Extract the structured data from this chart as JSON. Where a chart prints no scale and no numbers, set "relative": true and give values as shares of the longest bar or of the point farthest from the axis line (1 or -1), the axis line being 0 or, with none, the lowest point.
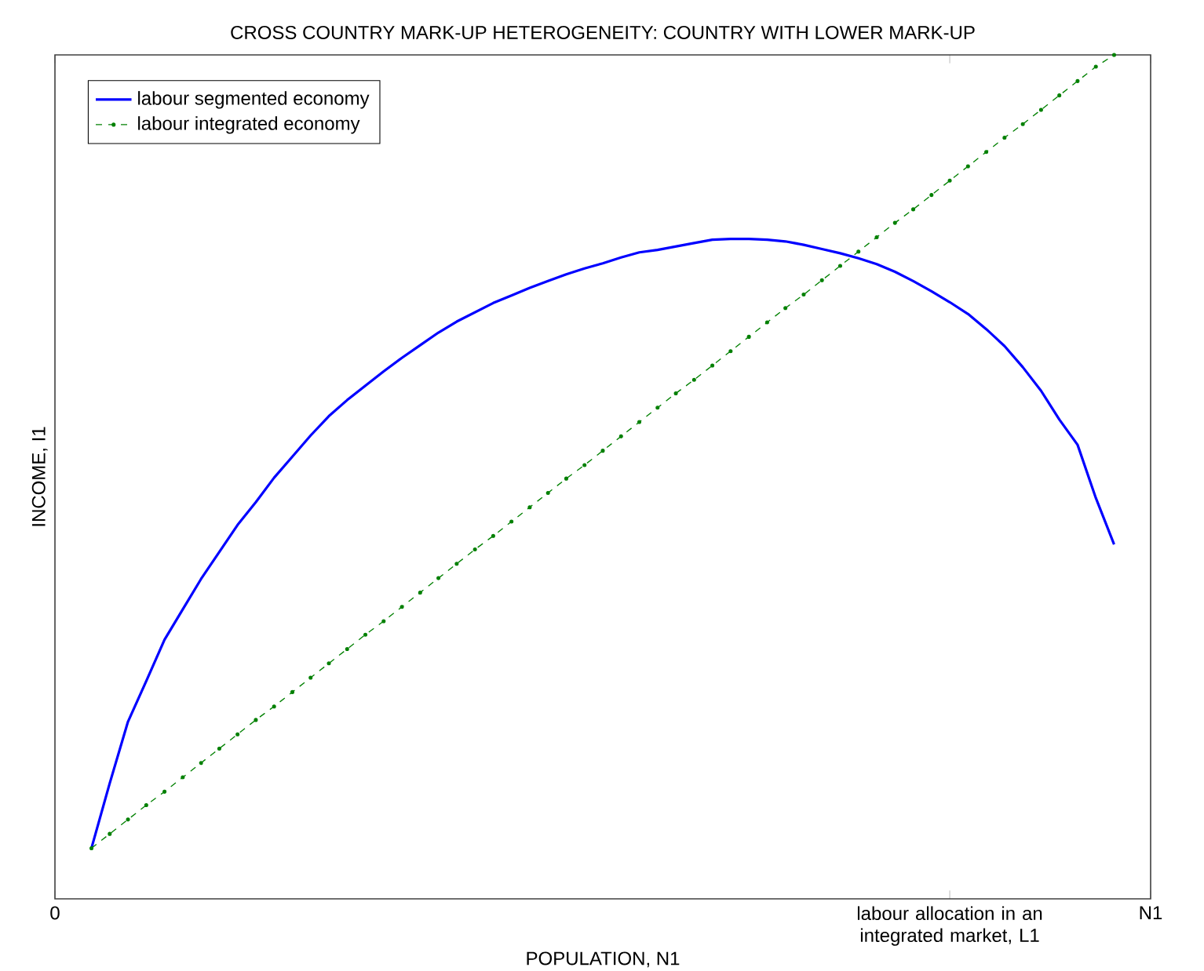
{
  "chart_data": {
    "type": "line",
    "title": "CROSS COUNTRY MARK-UP HETEROGENEITY: COUNTRY WITH LOWER MARK-UP",
    "xlabel": "POPULATION, N1",
    "ylabel": "INCOME, I1",
    "relative": true,
    "categories": [
      "0",
      null,
      null,
      null,
      null,
      null,
      null,
      null,
      null,
      null,
      null,
      null,
      null,
      null,
      null,
      null,
      null,
      null,
      null,
      null,
      null,
      null,
      null,
      null,
      null,
      null,
      null,
      null,
      null,
      null,
      null,
      null,
      null,
      null,
      null,
      null,
      null,
      null,
      null,
      null,
      null,
      null,
      null,
      null,
      null,
      null,
      null,
      null,
      null,
      "labour allocation in an integrated market, L1",
      null,
      null,
      null,
      null,
      null,
      null,
      null,
      null,
      null,
      null,
      "N1"
    ],
    "legend": "top left",
    "series": [
      {
        "name": "labour segmented economy",
        "color": "#0000ff",
        "line_style": "solid",
        "marker": "none",
        "values": [
          null,
          null,
          0.06,
          0.137,
          0.21,
          0.258,
          0.307,
          0.343,
          0.379,
          0.411,
          0.443,
          0.47,
          0.499,
          0.524,
          0.549,
          0.572,
          0.591,
          0.608,
          0.625,
          0.641,
          0.656,
          0.671,
          0.684,
          0.695,
          0.706,
          0.715,
          0.724,
          0.732,
          0.74,
          0.747,
          0.753,
          0.76,
          0.766,
          0.769,
          0.773,
          0.777,
          0.781,
          0.782,
          0.782,
          0.781,
          0.779,
          0.775,
          0.77,
          0.765,
          0.759,
          0.752,
          0.743,
          0.732,
          0.72,
          0.707,
          0.693,
          0.675,
          0.655,
          0.63,
          0.602,
          0.568,
          0.538,
          0.475,
          0.42,
          null,
          null
        ]
      },
      {
        "name": "labour integrated economy",
        "color": "#008000",
        "line_style": "dashed",
        "marker": "circle",
        "values": [
          null,
          null,
          0.06,
          0.077,
          0.094,
          0.111,
          0.127,
          0.144,
          0.161,
          0.178,
          0.195,
          0.212,
          0.228,
          0.245,
          0.262,
          0.279,
          0.296,
          0.313,
          0.329,
          0.346,
          0.363,
          0.38,
          0.397,
          0.414,
          0.43,
          0.447,
          0.464,
          0.481,
          0.498,
          0.514,
          0.531,
          0.548,
          0.565,
          0.582,
          0.599,
          0.615,
          0.632,
          0.649,
          0.666,
          0.683,
          0.7,
          0.716,
          0.733,
          0.75,
          0.767,
          0.784,
          0.801,
          0.817,
          0.834,
          0.851,
          0.868,
          0.885,
          0.902,
          0.918,
          0.935,
          0.952,
          0.969,
          0.986,
          1.0,
          null,
          null
        ]
      }
    ]
  }
}
